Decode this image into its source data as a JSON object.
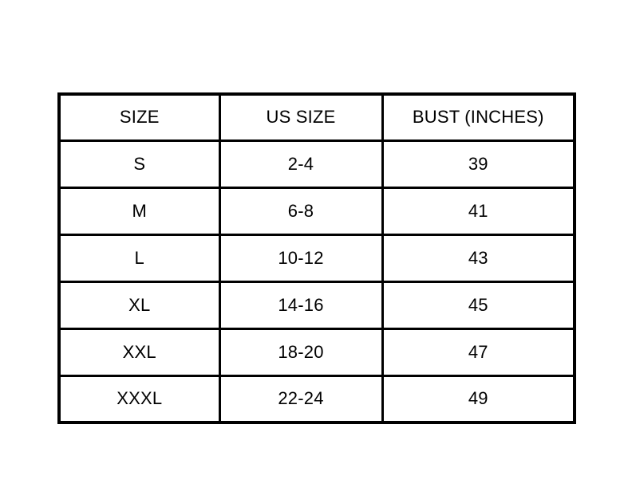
{
  "chart_data": {
    "type": "table",
    "columns": [
      "SIZE",
      "US SIZE",
      "BUST (INCHES)"
    ],
    "rows": [
      [
        "S",
        "2-4",
        "39"
      ],
      [
        "M",
        "6-8",
        "41"
      ],
      [
        "L",
        "10-12",
        "43"
      ],
      [
        "XL",
        "14-16",
        "45"
      ],
      [
        "XXL",
        "18-20",
        "47"
      ],
      [
        "XXXL",
        "22-24",
        "49"
      ]
    ]
  },
  "colors": {
    "border": "#000000",
    "text": "#000000",
    "background": "#ffffff"
  }
}
